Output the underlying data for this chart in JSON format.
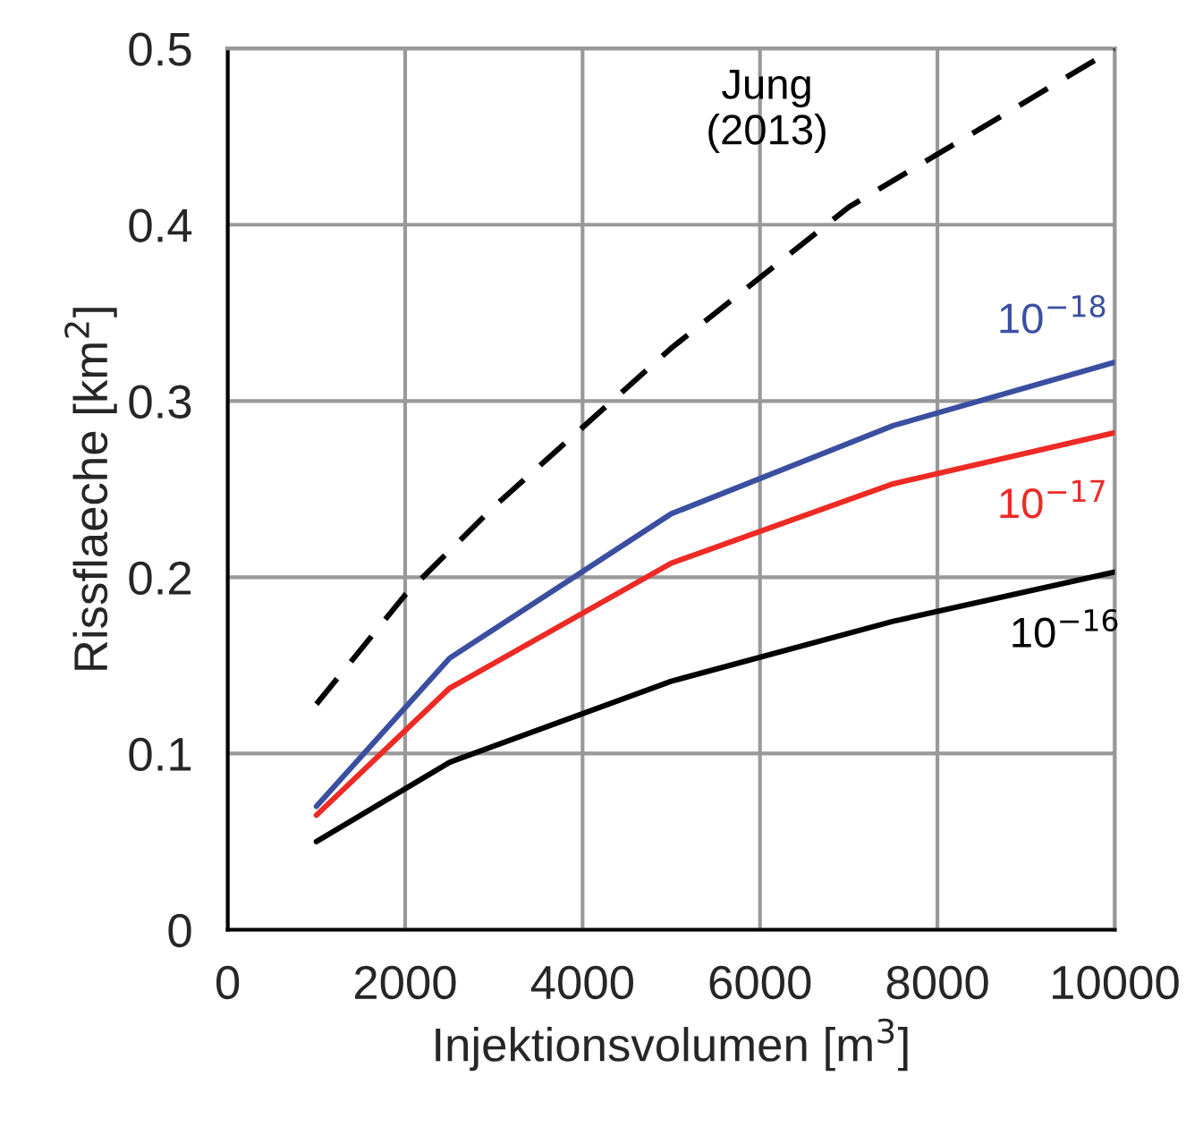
{
  "chart_data": {
    "type": "line",
    "xlabel": "Injektionsvolumen [m$^{3}$]",
    "ylabel": "Rissflaeche [km$^{2}$]",
    "xlim": [
      0,
      10000
    ],
    "xticks": [
      0,
      2000,
      4000,
      6000,
      8000,
      10000
    ],
    "ylim": [
      0,
      0.5
    ],
    "yticks": [
      0,
      0.1,
      0.2,
      0.3,
      0.4,
      0.5
    ],
    "grid": true,
    "legend": false,
    "marker": "none",
    "series": [
      {
        "name": "Jung\n(2013)",
        "color": "#000000",
        "line_style": "dashed",
        "x": [
          1000,
          2000,
          3000,
          4000,
          5000,
          6000,
          7000,
          8000,
          9000,
          10000
        ],
        "values": [
          0.128,
          0.19,
          0.24,
          0.285,
          0.33,
          0.37,
          0.41,
          0.44,
          0.47,
          0.5
        ]
      },
      {
        "name": "10$^{−18}$",
        "color": "#3a4fa0",
        "line_style": "solid",
        "x": [
          1000,
          2500,
          5000,
          7500,
          10000
        ],
        "values": [
          0.07,
          0.154,
          0.236,
          0.286,
          0.322
        ]
      },
      {
        "name": "10$^{−17}$",
        "color": "#ee2a24",
        "line_style": "solid",
        "x": [
          1000,
          2500,
          5000,
          7500,
          10000
        ],
        "values": [
          0.065,
          0.137,
          0.208,
          0.253,
          0.282
        ]
      },
      {
        "name": "10$^{−16}$",
        "color": "#000000",
        "line_style": "solid",
        "x": [
          1000,
          2500,
          5000,
          7500,
          10000
        ],
        "values": [
          0.05,
          0.095,
          0.141,
          0.175,
          0.203
        ]
      }
    ]
  }
}
